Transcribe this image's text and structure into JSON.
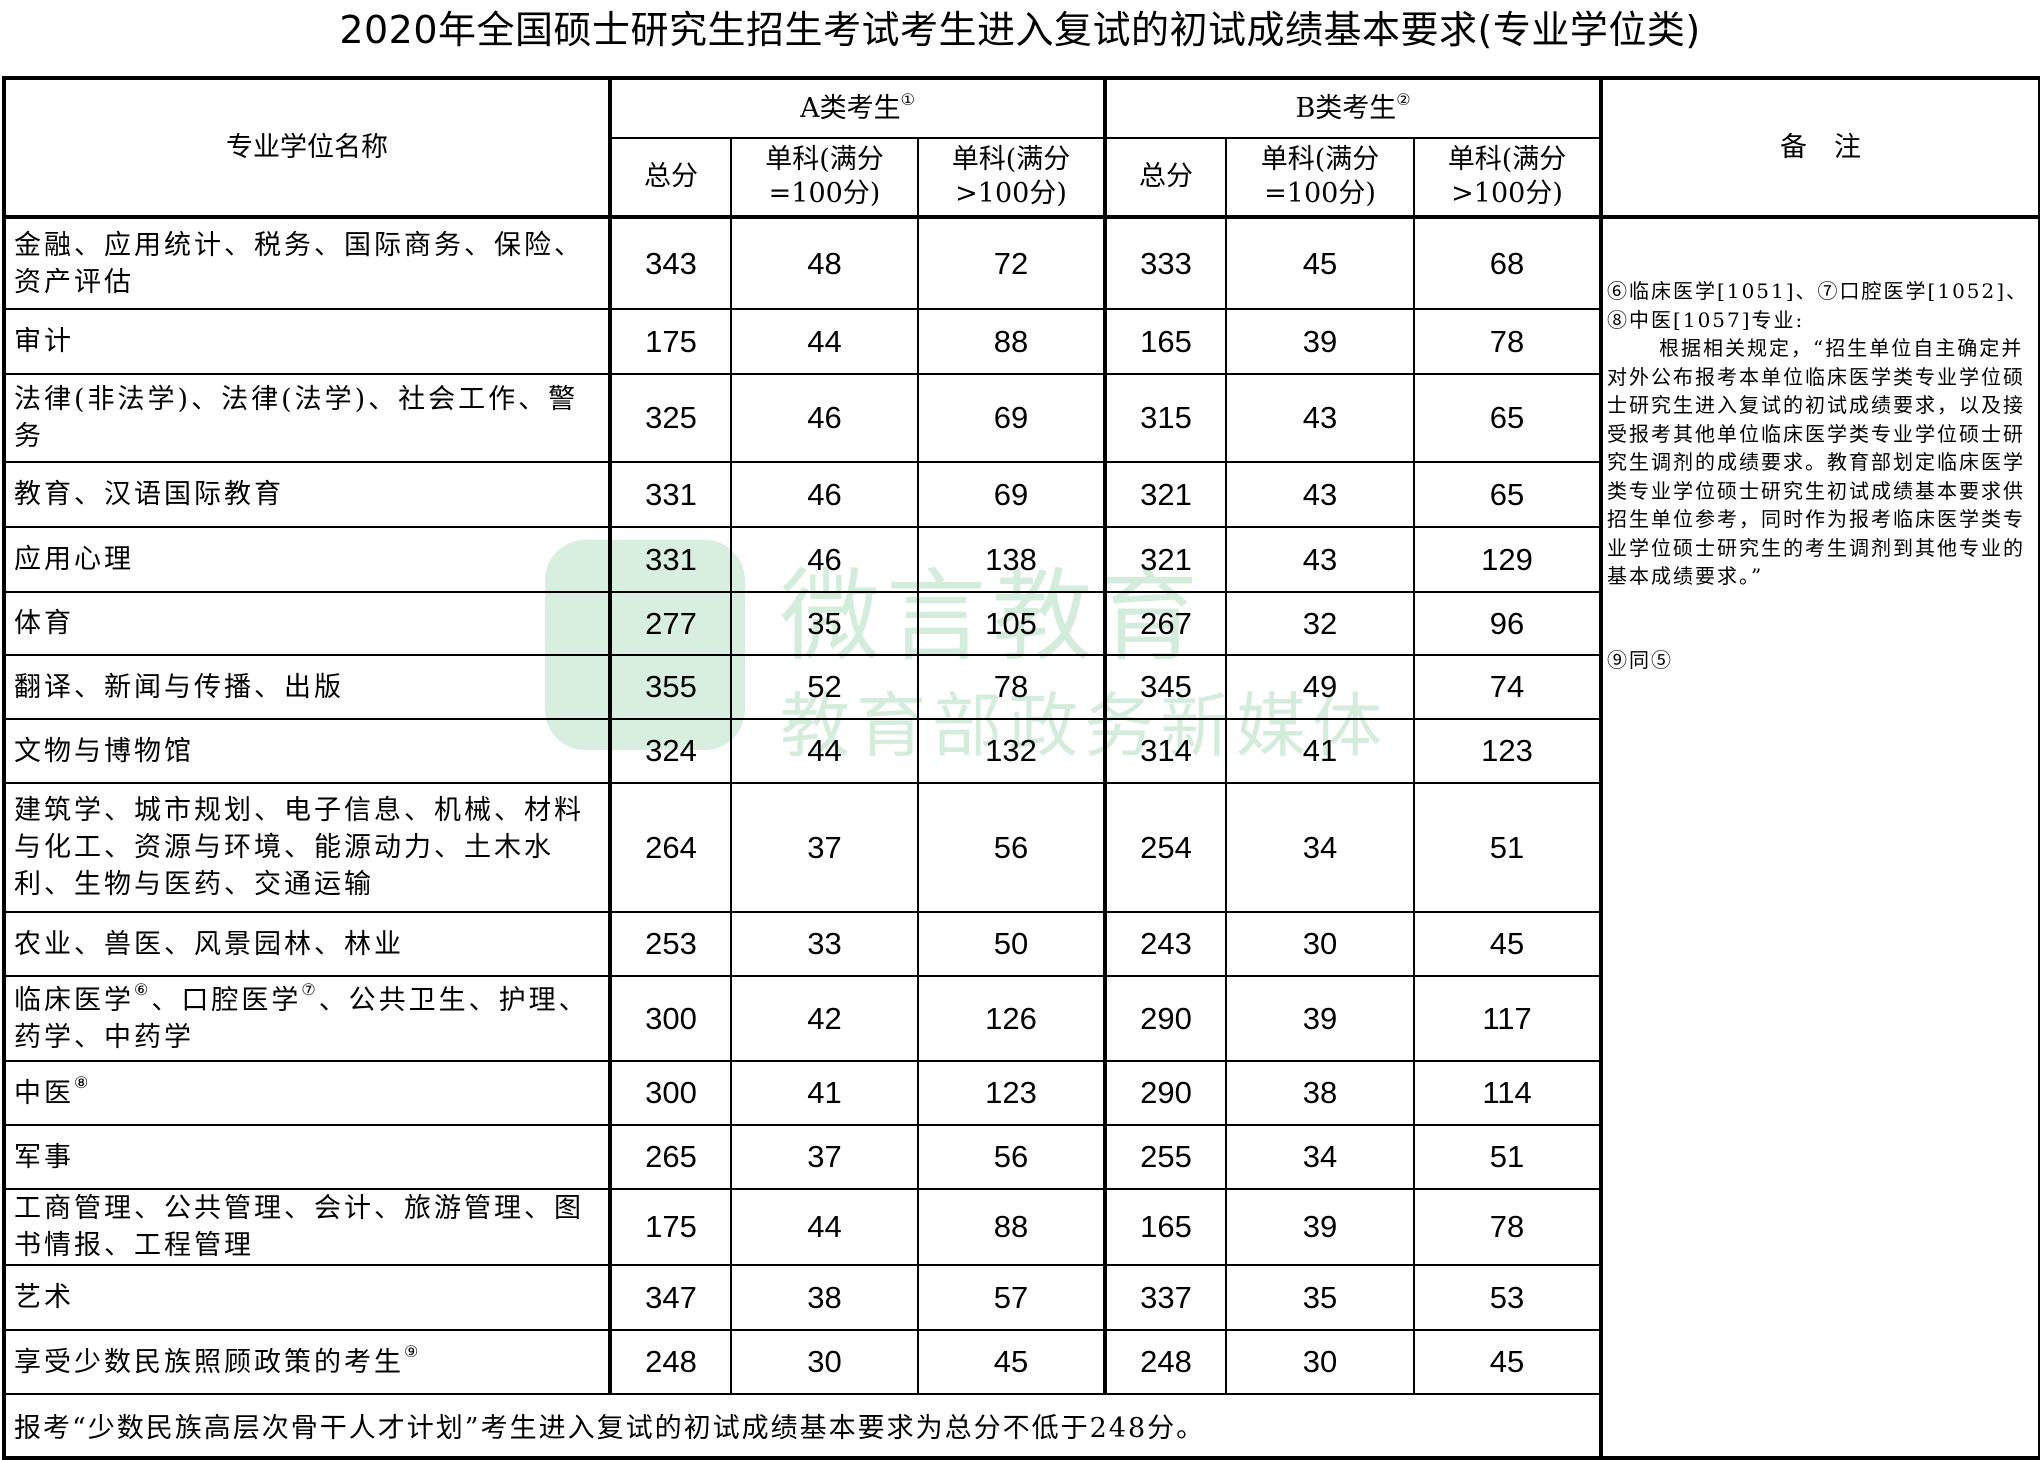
{
  "title": "2020年全国硕士研究生招生考试考生进入复试的初试成绩基本要求(专业学位类)",
  "header": {
    "name_col": "专业学位名称",
    "group_a": "A类考生",
    "group_a_note": "①",
    "group_b": "B类考生",
    "group_b_note": "②",
    "remarks": "备　注",
    "total": "总分",
    "single_100_l1": "单科(满分",
    "single_100_l2": "=100分)",
    "single_gt100_l1": "单科(满分",
    "single_gt100_l2": ">100分)"
  },
  "rows": [
    {
      "name": [
        {
          "t": "金融、应用统计、税务、国际商务、保险、资产评估"
        }
      ],
      "a": [
        "343",
        "48",
        "72"
      ],
      "b": [
        "333",
        "45",
        "68"
      ]
    },
    {
      "name": [
        {
          "t": "审计"
        }
      ],
      "a": [
        "175",
        "44",
        "88"
      ],
      "b": [
        "165",
        "39",
        "78"
      ]
    },
    {
      "name": [
        {
          "t": "法律(非法学)、法律(法学)、社会工作、警务"
        }
      ],
      "a": [
        "325",
        "46",
        "69"
      ],
      "b": [
        "315",
        "43",
        "65"
      ]
    },
    {
      "name": [
        {
          "t": "教育、汉语国际教育"
        }
      ],
      "a": [
        "331",
        "46",
        "69"
      ],
      "b": [
        "321",
        "43",
        "65"
      ]
    },
    {
      "name": [
        {
          "t": "应用心理"
        }
      ],
      "a": [
        "331",
        "46",
        "138"
      ],
      "b": [
        "321",
        "43",
        "129"
      ]
    },
    {
      "name": [
        {
          "t": "体育"
        }
      ],
      "a": [
        "277",
        "35",
        "105"
      ],
      "b": [
        "267",
        "32",
        "96"
      ]
    },
    {
      "name": [
        {
          "t": "翻译、新闻与传播、出版"
        }
      ],
      "a": [
        "355",
        "52",
        "78"
      ],
      "b": [
        "345",
        "49",
        "74"
      ]
    },
    {
      "name": [
        {
          "t": "文物与博物馆"
        }
      ],
      "a": [
        "324",
        "44",
        "132"
      ],
      "b": [
        "314",
        "41",
        "123"
      ]
    },
    {
      "name": [
        {
          "t": "建筑学、城市规划、电子信息、机械、材料与化工、资源与环境、能源动力、土木水利、生物与医药、交通运输"
        }
      ],
      "a": [
        "264",
        "37",
        "56"
      ],
      "b": [
        "254",
        "34",
        "51"
      ]
    },
    {
      "name": [
        {
          "t": "农业、兽医、风景园林、林业"
        }
      ],
      "a": [
        "253",
        "33",
        "50"
      ],
      "b": [
        "243",
        "30",
        "45"
      ]
    },
    {
      "name": [
        {
          "t": "临床医学",
          "sup": "⑥"
        },
        {
          "t": "、口腔医学",
          "sup": "⑦"
        },
        {
          "t": "、公共卫生、护理、药学、中药学"
        }
      ],
      "a": [
        "300",
        "42",
        "126"
      ],
      "b": [
        "290",
        "39",
        "117"
      ]
    },
    {
      "name": [
        {
          "t": "中医",
          "sup": "⑧"
        }
      ],
      "a": [
        "300",
        "41",
        "123"
      ],
      "b": [
        "290",
        "38",
        "114"
      ]
    },
    {
      "name": [
        {
          "t": "军事"
        }
      ],
      "a": [
        "265",
        "37",
        "56"
      ],
      "b": [
        "255",
        "34",
        "51"
      ]
    },
    {
      "name": [
        {
          "t": "工商管理、公共管理、会计、旅游管理、图书情报、工程管理"
        }
      ],
      "a": [
        "175",
        "44",
        "88"
      ],
      "b": [
        "165",
        "39",
        "78"
      ]
    },
    {
      "name": [
        {
          "t": "艺术"
        }
      ],
      "a": [
        "347",
        "38",
        "57"
      ],
      "b": [
        "337",
        "35",
        "53"
      ]
    },
    {
      "name": [
        {
          "t": "享受少数民族照顾政策的考生",
          "sup": "⑨"
        }
      ],
      "a": [
        "248",
        "30",
        "45"
      ],
      "b": [
        "248",
        "30",
        "45"
      ]
    }
  ],
  "remarks": {
    "line1": "⑥临床医学[1051]、⑦口腔医学[1052]、⑧中医[1057]专业:",
    "body": "根据相关规定，“招生单位自主确定并对外公布报考本单位临床医学类专业学位硕士研究生进入复试的初试成绩要求，以及接受报考其他单位临床医学类专业学位硕士研究生调剂的成绩要求。教育部划定临床医学类专业学位硕士研究生初试成绩基本要求供招生单位参考，同时作为报考临床医学类专业学位硕士研究生的考生调剂到其他专业的基本成绩要求。”",
    "note9": "⑨同⑤"
  },
  "footer": "报考“少数民族高层次骨干人才计划”考生进入复试的初试成绩基本要求为总分不低于248分。",
  "watermark": {
    "line1": "微言教育",
    "line2": "教育部政务新媒体",
    "color": "#3fae5e"
  }
}
